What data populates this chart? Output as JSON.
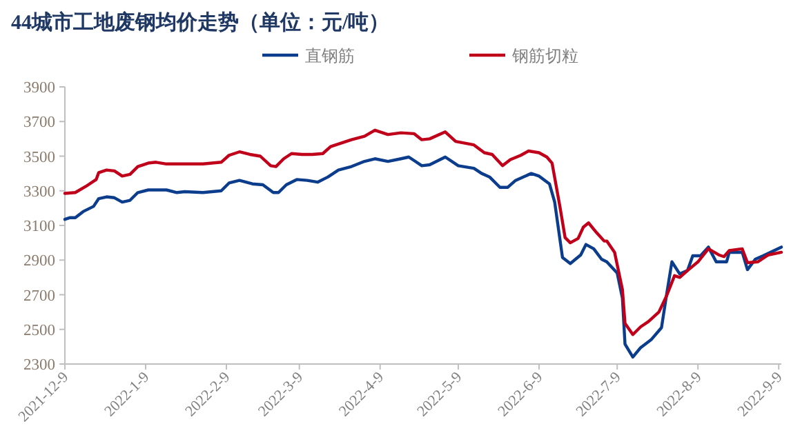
{
  "chart_data": {
    "type": "line",
    "title": "44城市工地废钢均价走势（单位：元/吨）",
    "xlim": [
      "2021-12-09",
      "2022-09-10"
    ],
    "xticks": [
      {
        "value": "2021-12-09",
        "label": "2021-12-9"
      },
      {
        "value": "2022-01-09",
        "label": "2022-1-9"
      },
      {
        "value": "2022-02-09",
        "label": "2022-2-9"
      },
      {
        "value": "2022-03-09",
        "label": "2022-3-9"
      },
      {
        "value": "2022-04-09",
        "label": "2022-4-9"
      },
      {
        "value": "2022-05-09",
        "label": "2022-5-9"
      },
      {
        "value": "2022-06-09",
        "label": "2022-6-9"
      },
      {
        "value": "2022-07-09",
        "label": "2022-7-9"
      },
      {
        "value": "2022-08-09",
        "label": "2022-8-9"
      },
      {
        "value": "2022-09-09",
        "label": "2022-9-9"
      }
    ],
    "ylim": [
      2300,
      3900
    ],
    "yticks": [
      2300,
      2500,
      2700,
      2900,
      3100,
      3300,
      3500,
      3700,
      3900
    ],
    "grid": false,
    "legend": "top",
    "marker": "none",
    "line_style": "solid",
    "series": [
      {
        "name": "直钢筋",
        "color": "#0b3d8c",
        "x": [
          "2021-12-09",
          "2021-12-11",
          "2021-12-13",
          "2021-12-16",
          "2021-12-20",
          "2021-12-22",
          "2021-12-25",
          "2021-12-28",
          "2021-12-31",
          "2022-01-03",
          "2022-01-06",
          "2022-01-10",
          "2022-01-17",
          "2022-01-21",
          "2022-01-24",
          "2022-01-31",
          "2022-02-07",
          "2022-02-10",
          "2022-02-14",
          "2022-02-19",
          "2022-02-23",
          "2022-02-27",
          "2022-03-01",
          "2022-03-04",
          "2022-03-08",
          "2022-03-12",
          "2022-03-16",
          "2022-03-20",
          "2022-03-24",
          "2022-03-29",
          "2022-04-03",
          "2022-04-07",
          "2022-04-12",
          "2022-04-17",
          "2022-04-20",
          "2022-04-22",
          "2022-04-25",
          "2022-04-28",
          "2022-05-04",
          "2022-05-09",
          "2022-05-15",
          "2022-05-18",
          "2022-05-21",
          "2022-05-25",
          "2022-05-28",
          "2022-05-31",
          "2022-06-06",
          "2022-06-09",
          "2022-06-13",
          "2022-06-15",
          "2022-06-18",
          "2022-06-21",
          "2022-06-25",
          "2022-06-27",
          "2022-06-30",
          "2022-07-03",
          "2022-07-05",
          "2022-07-09",
          "2022-07-11",
          "2022-07-12",
          "2022-07-15",
          "2022-07-18",
          "2022-07-22",
          "2022-07-26",
          "2022-07-28",
          "2022-07-30",
          "2022-08-02",
          "2022-08-05",
          "2022-08-07",
          "2022-08-10",
          "2022-08-13",
          "2022-08-16",
          "2022-08-20",
          "2022-08-21",
          "2022-08-26",
          "2022-08-28",
          "2022-08-31",
          "2022-09-03",
          "2022-09-10"
        ],
        "values": [
          3135,
          3145,
          3145,
          3180,
          3210,
          3255,
          3265,
          3260,
          3235,
          3245,
          3290,
          3305,
          3305,
          3290,
          3295,
          3290,
          3300,
          3345,
          3360,
          3340,
          3335,
          3290,
          3290,
          3335,
          3365,
          3360,
          3350,
          3380,
          3420,
          3440,
          3470,
          3485,
          3470,
          3485,
          3495,
          3475,
          3445,
          3450,
          3495,
          3445,
          3430,
          3400,
          3380,
          3320,
          3320,
          3360,
          3400,
          3385,
          3340,
          3235,
          2915,
          2880,
          2930,
          2990,
          2965,
          2905,
          2890,
          2825,
          2680,
          2415,
          2340,
          2395,
          2440,
          2510,
          2705,
          2890,
          2820,
          2840,
          2925,
          2925,
          2975,
          2890,
          2890,
          2945,
          2945,
          2845,
          2905,
          2925,
          2975
        ]
      },
      {
        "name": "钢筋切粒",
        "color": "#c0001a",
        "x": [
          "2021-12-09",
          "2021-12-13",
          "2021-12-17",
          "2021-12-21",
          "2021-12-22",
          "2021-12-25",
          "2021-12-28",
          "2021-12-31",
          "2022-01-03",
          "2022-01-06",
          "2022-01-10",
          "2022-01-13",
          "2022-01-17",
          "2022-01-24",
          "2022-01-31",
          "2022-02-07",
          "2022-02-10",
          "2022-02-14",
          "2022-02-18",
          "2022-02-22",
          "2022-02-26",
          "2022-02-28",
          "2022-03-03",
          "2022-03-06",
          "2022-03-10",
          "2022-03-14",
          "2022-03-18",
          "2022-03-21",
          "2022-03-25",
          "2022-03-29",
          "2022-04-03",
          "2022-04-07",
          "2022-04-12",
          "2022-04-17",
          "2022-04-22",
          "2022-04-25",
          "2022-04-28",
          "2022-05-04",
          "2022-05-08",
          "2022-05-15",
          "2022-05-19",
          "2022-05-22",
          "2022-05-26",
          "2022-05-29",
          "2022-06-02",
          "2022-06-05",
          "2022-06-09",
          "2022-06-12",
          "2022-06-14",
          "2022-06-17",
          "2022-06-19",
          "2022-06-21",
          "2022-06-24",
          "2022-06-26",
          "2022-06-28",
          "2022-07-01",
          "2022-07-04",
          "2022-07-05",
          "2022-07-08",
          "2022-07-11",
          "2022-07-12",
          "2022-07-15",
          "2022-07-18",
          "2022-07-21",
          "2022-07-25",
          "2022-07-28",
          "2022-07-31",
          "2022-08-02",
          "2022-08-05",
          "2022-08-09",
          "2022-08-13",
          "2022-08-17",
          "2022-08-19",
          "2022-08-21",
          "2022-08-26",
          "2022-08-28",
          "2022-09-01",
          "2022-09-05",
          "2022-09-10"
        ],
        "values": [
          3285,
          3290,
          3325,
          3365,
          3405,
          3420,
          3415,
          3385,
          3395,
          3440,
          3460,
          3465,
          3455,
          3455,
          3455,
          3465,
          3505,
          3525,
          3510,
          3500,
          3445,
          3440,
          3485,
          3515,
          3510,
          3510,
          3515,
          3555,
          3575,
          3595,
          3615,
          3650,
          3625,
          3635,
          3630,
          3595,
          3600,
          3640,
          3585,
          3565,
          3520,
          3510,
          3445,
          3480,
          3505,
          3530,
          3520,
          3495,
          3460,
          3210,
          3030,
          3000,
          3025,
          3090,
          3115,
          3060,
          3010,
          3010,
          2945,
          2730,
          2535,
          2470,
          2515,
          2545,
          2600,
          2695,
          2810,
          2800,
          2840,
          2890,
          2965,
          2930,
          2920,
          2955,
          2965,
          2885,
          2890,
          2930,
          2945
        ]
      }
    ]
  }
}
